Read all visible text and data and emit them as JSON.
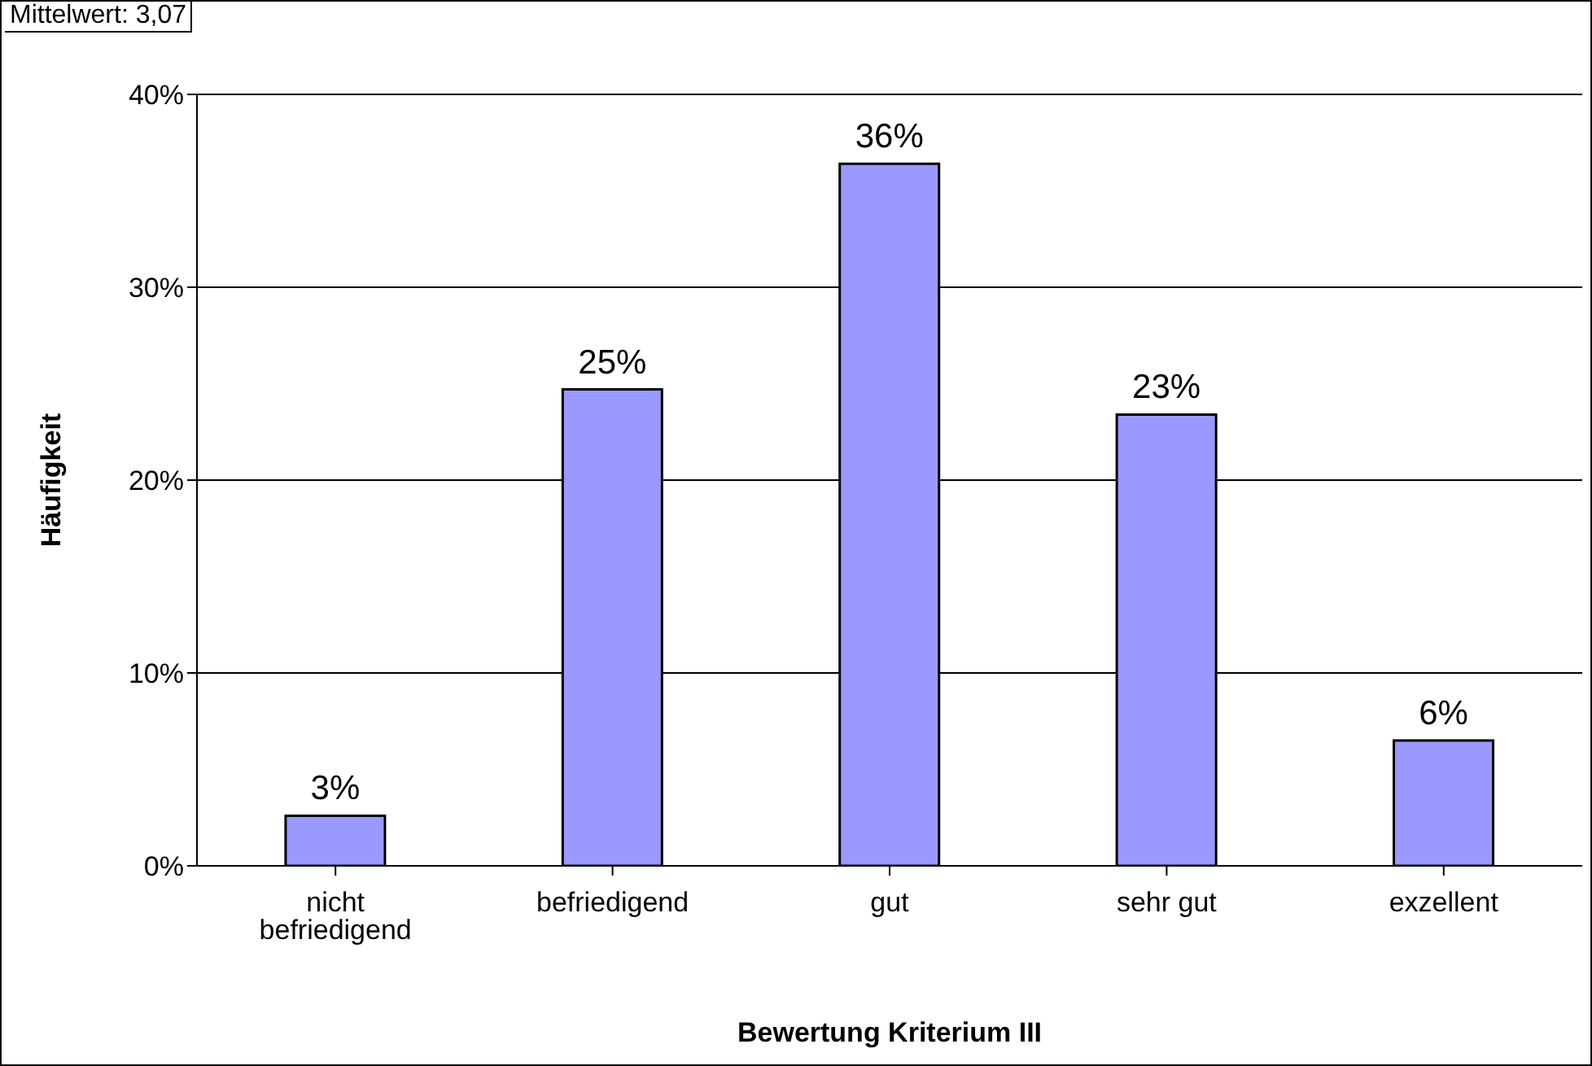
{
  "chart_data": {
    "type": "bar",
    "xlabel": "Bewertung Kriterium III",
    "ylabel": "Häufigkeit",
    "categories": [
      "nicht befriedigend",
      "befriedigend",
      "gut",
      "sehr gut",
      "exzellent"
    ],
    "values": [
      2.6,
      24.7,
      36.4,
      23.4,
      6.5
    ],
    "value_labels": [
      "3%",
      "25%",
      "36%",
      "23%",
      "6%"
    ],
    "color": "#9999ff",
    "ylim": [
      0,
      40
    ],
    "yticks": [
      {
        "value": 0,
        "label": "0%"
      },
      {
        "value": 10,
        "label": "10%"
      },
      {
        "value": 20,
        "label": "20%"
      },
      {
        "value": 30,
        "label": "30%"
      },
      {
        "value": 40,
        "label": "40%"
      }
    ],
    "grid": "y",
    "annotations": [
      "Mittelwert: 3,07"
    ]
  }
}
